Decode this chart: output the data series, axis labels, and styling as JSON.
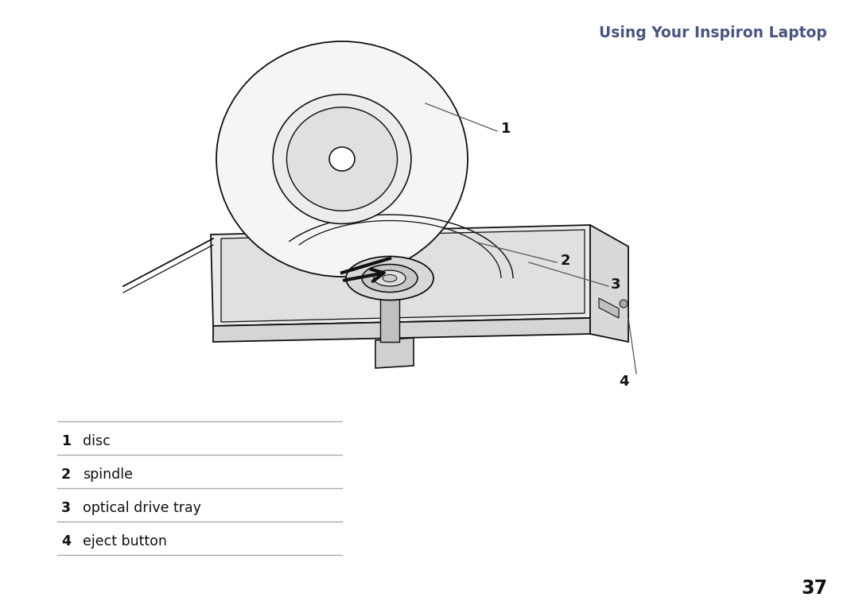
{
  "title": "Using Your Inspiron Laptop",
  "title_color": "#4a5580",
  "title_fontsize": 13.5,
  "title_style": "bold",
  "page_number": "37",
  "page_number_color": "#111111",
  "page_number_fontsize": 17,
  "background_color": "#ffffff",
  "line_color": "#111111",
  "labels": [
    {
      "num": "1",
      "text": "disc"
    },
    {
      "num": "2",
      "text": "spindle"
    },
    {
      "num": "3",
      "text": "optical drive tray"
    },
    {
      "num": "4",
      "text": "eject button"
    }
  ],
  "label_text_color": "#111111",
  "label_text_fontsize": 12.5,
  "separator_color": "#aaaaaa",
  "callout_line_color": "#555555",
  "arrow_color": "#111111"
}
